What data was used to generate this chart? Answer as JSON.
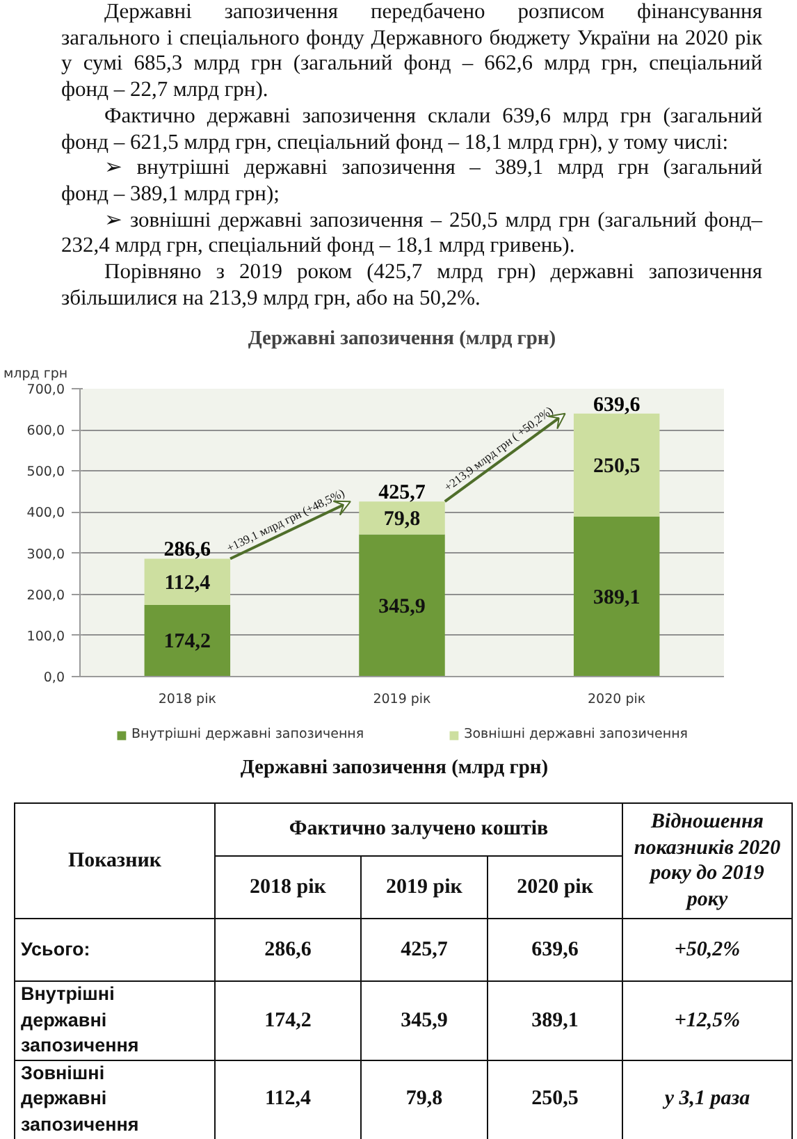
{
  "chart_data": [
    {
      "type": "other",
      "annotations": [
        "Державні запозичення передбачено розписом фінансування\nзагального і спеціального фонду Державного бюджету України на 2020 рік\nу сумі 685,3 млрд грн (загальний фонд – 662,6 млрд грн, спеціальний\nфонд – 22,7 млрд грн).",
        "Фактично державні запозичення склали 639,6 млрд грн (загальний\nфонд – 621,5 млрд грн, спеціальний фонд – 18,1 млрд грн), у тому числі:",
        "➢ внутрішні державні запозичення – 389,1 млрд грн (загальний\nфонд – 389,1 млрд грн);",
        "➢ зовнішні державні запозичення – 250,5 млрд грн (загальний фонд–\n232,4 млрд грн, спеціальний фонд – 18,1 млрд гривень).",
        "Порівняно з 2019 роком (425,7 млрд грн) державні запозичення\nзбільшилися на 213,9 млрд грн, або на 50,2%."
      ]
    },
    {
      "type": "bar",
      "title": "Державні запозичення (млрд грн)",
      "ylabel": "млрд грн",
      "categories": [
        "2018 рік",
        "2019 рік",
        "2020 рік"
      ],
      "stacked": true,
      "series": [
        {
          "name": "Внутрішні державні запозичення",
          "color": "#6e9a39",
          "values": [
            174.2,
            345.9,
            389.1
          ],
          "value_labels": [
            "174,2",
            "345,9",
            "389,1"
          ]
        },
        {
          "name": "Зовнішні державні запозичення",
          "color": "#cddfa0",
          "values": [
            112.4,
            79.8,
            250.5
          ],
          "value_labels": [
            "112,4",
            "79,8",
            "250,5"
          ]
        }
      ],
      "totals": [
        "286,6",
        "425,7",
        "639,6"
      ],
      "ylim": [
        0,
        700
      ],
      "yticks": [
        {
          "value": 0,
          "label": "0,0"
        },
        {
          "value": 100,
          "label": "100,0"
        },
        {
          "value": 200,
          "label": "200,0"
        },
        {
          "value": 300,
          "label": "300,0"
        },
        {
          "value": 400,
          "label": "400,0"
        },
        {
          "value": 500,
          "label": "500,0"
        },
        {
          "value": 600,
          "label": "600,0"
        },
        {
          "value": 700,
          "label": "700,0"
        }
      ],
      "grid": "y",
      "legend": "bottom",
      "annotations": [
        "+139,1 млрд грн (+48,5%)",
        "+213,9 млрд грн ( +50,2%)"
      ]
    },
    {
      "type": "other",
      "title": "Державні запозичення (млрд грн)",
      "annotations": [
        "Показник",
        "Фактично залучено коштів",
        "Відношення\nпоказників 2020\nроку до 2019\nроку",
        "2018 рік",
        "2019 рік",
        "2020 рік",
        "Усього:",
        "286,6",
        "425,7",
        "639,6",
        "+50,2%",
        "Внутрішні\nдержавні\nзапозичення",
        "174,2",
        "345,9",
        "389,1",
        "+12,5%",
        "Зовнішні\nдержавні\nзапозичення",
        "112,4",
        "79,8",
        "250,5",
        "у 3,1 раза"
      ]
    }
  ]
}
